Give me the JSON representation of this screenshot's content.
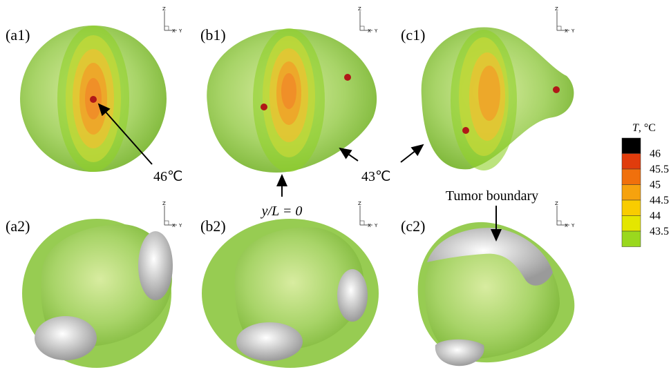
{
  "panels": {
    "a1": "(a1)",
    "b1": "(b1)",
    "c1": "(c1)",
    "a2": "(a2)",
    "b2": "(b2)",
    "c2": "(c2)"
  },
  "axes_triad": {
    "z": "Z",
    "x": "X",
    "y": "Y"
  },
  "annotations": {
    "peak": "46℃",
    "boundary_temp": "43℃",
    "plane": "y/L = 0",
    "tumor": "Tumor boundary"
  },
  "colorbar": {
    "title_symbol": "T",
    "title_unit": ", °C",
    "colors": [
      "#000000",
      "#e03c0c",
      "#f0700c",
      "#f6a20e",
      "#f9cc00",
      "#e4e600",
      "#9ad81e"
    ],
    "labels": [
      "46",
      "45.5",
      "45",
      "44.5",
      "44",
      "43.5"
    ]
  }
}
